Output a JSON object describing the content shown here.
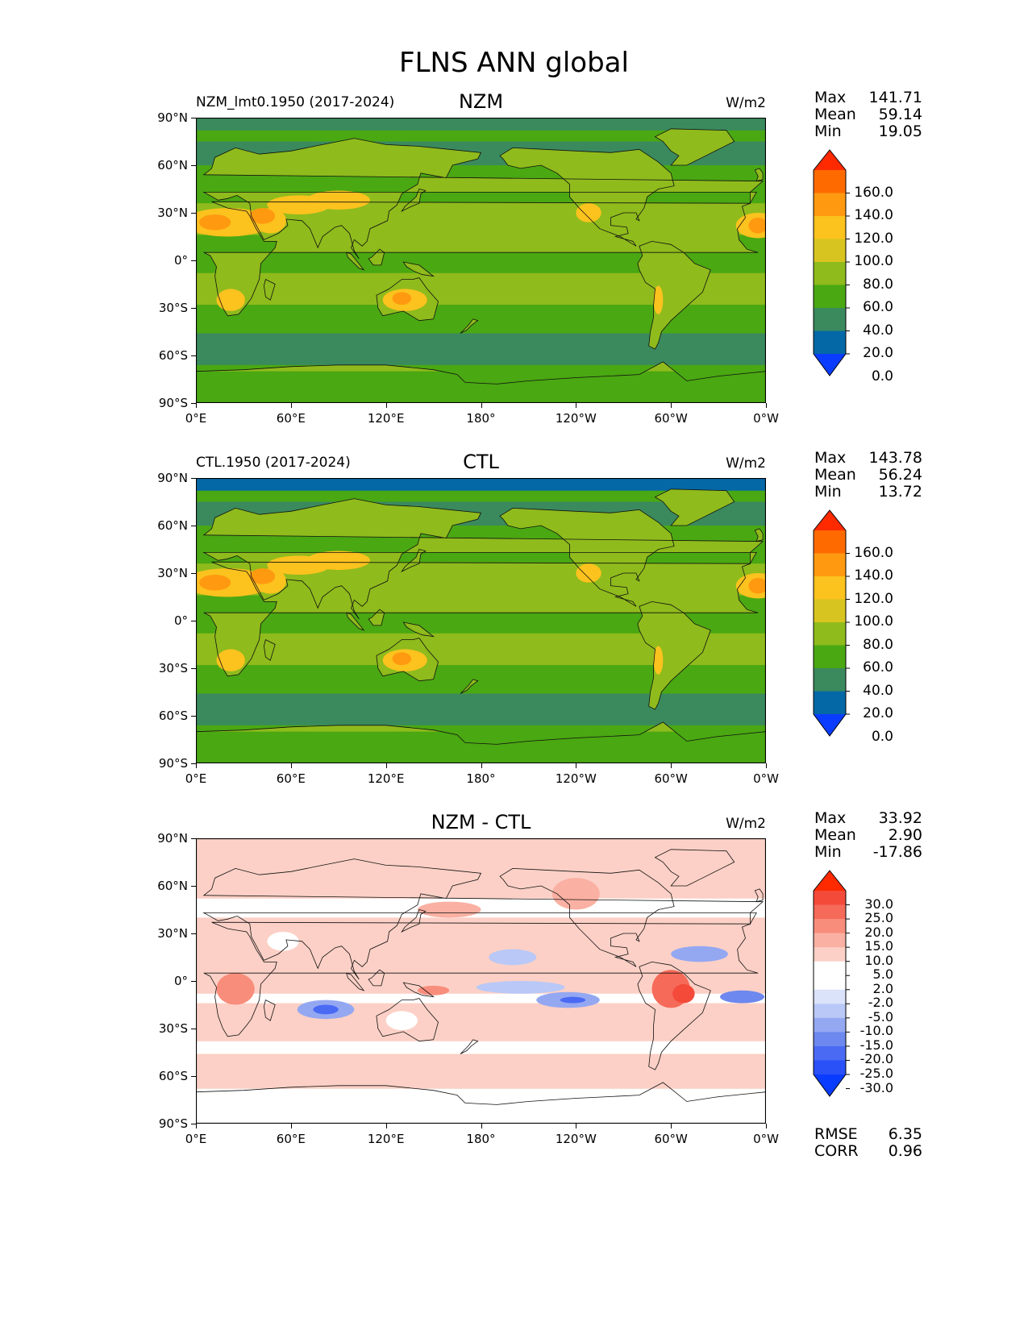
{
  "figure_title": "FLNS ANN global",
  "units": "W/m2",
  "lat_ticks": [
    "90°N",
    "60°N",
    "30°N",
    "0°",
    "30°S",
    "60°S",
    "90°S"
  ],
  "lon_ticks": [
    "0°E",
    "60°E",
    "120°E",
    "180°",
    "120°W",
    "60°W",
    "0°W"
  ],
  "abs_levels": [
    "160.0",
    "140.0",
    "120.0",
    "100.0",
    "80.0",
    "60.0",
    "40.0",
    "20.0",
    "0.0"
  ],
  "abs_colors": [
    "#ff2a00",
    "#ff6a00",
    "#ff9a10",
    "#fcc21e",
    "#d8c420",
    "#8fbb1c",
    "#4aa812",
    "#3a8a5e",
    "#0568a6",
    "#0a3cff"
  ],
  "diff_levels": [
    "30.0",
    "25.0",
    "20.0",
    "15.0",
    "10.0",
    "5.0",
    "2.0",
    "-2.0",
    "-5.0",
    "-10.0",
    "-15.0",
    "-20.0",
    "-25.0",
    "-30.0"
  ],
  "diff_colors": [
    "#ff2a00",
    "#f44a3a",
    "#f56a58",
    "#f88d7c",
    "#fab0a2",
    "#fcd0c6",
    "#ffffff",
    "#ffffff",
    "#dbe3fb",
    "#b9c8f7",
    "#94a8f2",
    "#6d88ee",
    "#4a6af4",
    "#2a50f8",
    "#0a3cff"
  ],
  "panels": [
    {
      "case_label": "NZM_lmt0.1950 (2017-2024)",
      "title": "NZM",
      "units": "W/m2",
      "stats": {
        "max_label": "Max",
        "max": "141.71",
        "mean_label": "Mean",
        "mean": "59.14",
        "min_label": "Min",
        "min": "19.05"
      }
    },
    {
      "case_label": "CTL.1950 (2017-2024)",
      "title": "CTL",
      "units": "W/m2",
      "stats": {
        "max_label": "Max",
        "max": "143.78",
        "mean_label": "Mean",
        "mean": "56.24",
        "min_label": "Min",
        "min": "13.72"
      }
    },
    {
      "case_label": "",
      "title": "NZM - CTL",
      "units": "W/m2",
      "stats": {
        "max_label": "Max",
        "max": "33.92",
        "mean_label": "Mean",
        "mean": "2.90",
        "min_label": "Min",
        "min": "-17.86"
      },
      "metrics": {
        "rmse_label": "RMSE",
        "rmse": "6.35",
        "corr_label": "CORR",
        "corr": "0.96"
      }
    }
  ]
}
